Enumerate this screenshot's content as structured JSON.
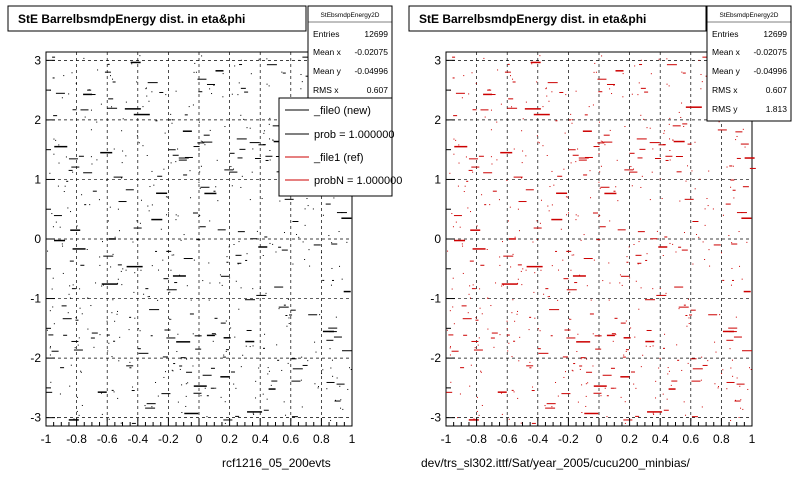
{
  "colors": {
    "file0": "#000000",
    "file1": "#cc0000",
    "grid": "#000000",
    "frame": "#000000"
  },
  "legend": {
    "entries": [
      {
        "label": "_file0 (new)",
        "color": "#000000"
      },
      {
        "label": "prob = 1.000000",
        "color": "#000000"
      },
      {
        "label": "_file1 (ref)",
        "color": "#cc0000"
      },
      {
        "label": "probN = 1.000000",
        "color": "#cc0000"
      }
    ]
  },
  "footer": {
    "left": "rcf1216_05_200evts",
    "right": "dev/trs_sl302.ittf/Sat/year_2005/cucu200_minbias/"
  },
  "chart_data": [
    {
      "type": "scatter",
      "title": "StE BarrelbsmdpEnergy dist. in eta&phi",
      "xlabel": "",
      "ylabel": "",
      "xlim": [
        -1,
        1
      ],
      "ylim": [
        -3.14,
        3.14
      ],
      "xticks": [
        "-1",
        "-0.8",
        "-0.6",
        "-0.4",
        "-0.2",
        "0",
        "0.2",
        "0.4",
        "0.6",
        "0.8",
        "1"
      ],
      "yticks": [
        "-3",
        "-2",
        "-1",
        "0",
        "1",
        "2",
        "3"
      ],
      "grid": true,
      "marker_color": "#000000",
      "stats": {
        "name": "StEbsmdpEnergy2D",
        "rows": [
          {
            "label": "Entries",
            "value": "12699"
          },
          {
            "label": "Mean x",
            "value": "-0.02075"
          },
          {
            "label": "Mean y",
            "value": "-0.04996"
          },
          {
            "label": "RMS x",
            "value": "0.607"
          }
        ]
      }
    },
    {
      "type": "scatter",
      "title": "StE BarrelbsmdpEnergy dist. in eta&phi",
      "xlabel": "",
      "ylabel": "",
      "xlim": [
        -1,
        1
      ],
      "ylim": [
        -3.14,
        3.14
      ],
      "xticks": [
        "-1",
        "-0.8",
        "-0.6",
        "-0.4",
        "-0.2",
        "0",
        "0.2",
        "0.4",
        "0.6",
        "0.8",
        "1"
      ],
      "yticks": [
        "-3",
        "-2",
        "-1",
        "0",
        "1",
        "2",
        "3"
      ],
      "grid": true,
      "marker_color": "#cc0000",
      "stats": {
        "name": "StEbsmdpEnergy2D",
        "rows": [
          {
            "label": "Entries",
            "value": "12699"
          },
          {
            "label": "Mean x",
            "value": "-0.02075"
          },
          {
            "label": "Mean y",
            "value": "-0.04996"
          },
          {
            "label": "RMS x",
            "value": "0.607"
          },
          {
            "label": "RMS y",
            "value": "1.813"
          }
        ]
      }
    }
  ]
}
